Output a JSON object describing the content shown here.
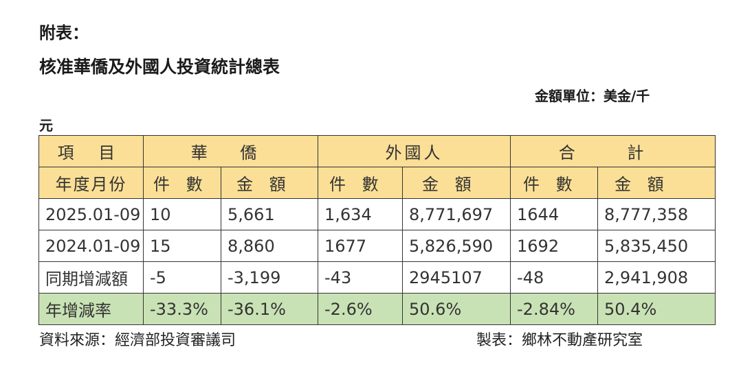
{
  "heading": {
    "appendix_label": "附表：",
    "title": "核准華僑及外國人投資統計總表",
    "unit_line1": "金額單位：美金/千",
    "unit_line2": "元"
  },
  "table": {
    "header_row1": {
      "item": "項 目",
      "overseas_chinese": "華 僑",
      "foreigners": "外國人",
      "total": "合 計"
    },
    "header_row2": {
      "period": "年度月份",
      "cases_1": "件 數",
      "amount_1": "金 額",
      "cases_2": "件 數",
      "amount_2": "金 額",
      "cases_3": "件 數",
      "amount_3": "金 額"
    },
    "rows": [
      {
        "label": "2025.01-09",
        "oc_cases": "10",
        "oc_amount": "5,661",
        "f_cases": "1,634",
        "f_amount": "8,771,697",
        "t_cases": "1644",
        "t_amount": "8,777,358"
      },
      {
        "label": "2024.01-09",
        "oc_cases": "15",
        "oc_amount": "8,860",
        "f_cases": "1677",
        "f_amount": "5,826,590",
        "t_cases": "1692",
        "t_amount": "5,835,450"
      },
      {
        "label": "同期增減額",
        "oc_cases": "-5",
        "oc_amount": "-3,199",
        "f_cases": "-43",
        "f_amount": "2945107",
        "t_cases": "-48",
        "t_amount": "2,941,908"
      },
      {
        "label": "年增減率",
        "oc_cases": "-33.3%",
        "oc_amount": "-36.1%",
        "f_cases": "-2.6%",
        "f_amount": "50.6%",
        "t_cases": "-2.84%",
        "t_amount": "50.4%"
      }
    ]
  },
  "footer": {
    "source": "資料來源：經濟部投資審議司",
    "made_by": "製表：鄉林不動產研究室"
  },
  "colors": {
    "header_bg": "#fbdf96",
    "growth_row_bg": "#c9e2b5",
    "border": "#333333"
  }
}
